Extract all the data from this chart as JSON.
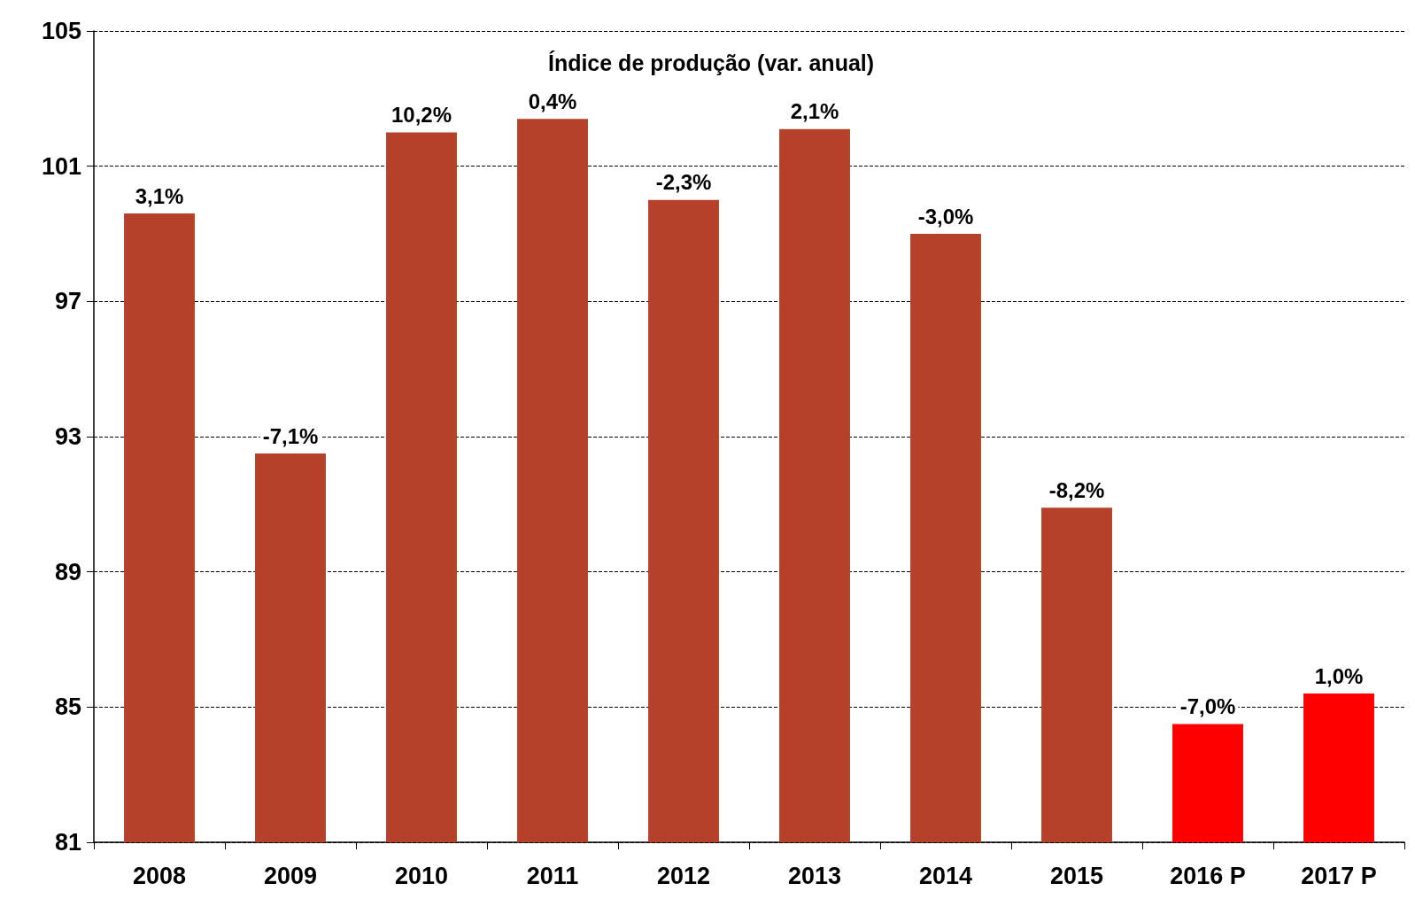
{
  "chart_data": {
    "type": "bar",
    "title": "Índice de produção (var. anual)",
    "categories": [
      "2008",
      "2009",
      "2010",
      "2011",
      "2012",
      "2013",
      "2014",
      "2015",
      "2016 P",
      "2017 P"
    ],
    "values": [
      99.6,
      92.5,
      102.0,
      102.4,
      100.0,
      102.1,
      99.0,
      90.9,
      84.5,
      85.4
    ],
    "colors": [
      "#b5412a",
      "#b5412a",
      "#b5412a",
      "#b5412a",
      "#b5412a",
      "#b5412a",
      "#b5412a",
      "#b5412a",
      "#ff0000",
      "#ff0000"
    ],
    "annotations": [
      {
        "text": "3,1%",
        "x": "2008",
        "y": 99.6
      },
      {
        "text": "-7,1%",
        "x": "2009",
        "y": 92.5
      },
      {
        "text": "10,2%",
        "x": "2010",
        "y": 102.0
      },
      {
        "text": "0,4%",
        "x": "2011",
        "y": 102.4
      },
      {
        "text": "-2,3%",
        "x": "2012",
        "y": 100.0
      },
      {
        "text": "2,1%",
        "x": "2013",
        "y": 102.1
      },
      {
        "text": "-3,0%",
        "x": "2014",
        "y": 99.0
      },
      {
        "text": "-8,2%",
        "x": "2015",
        "y": 90.9
      },
      {
        "text": "-7,0%",
        "x": "2016 P",
        "y": 84.5
      },
      {
        "text": "1,0%",
        "x": "2017 P",
        "y": 85.4
      }
    ],
    "ylim": [
      81,
      105
    ],
    "yticks": [
      81,
      85,
      89,
      93,
      97,
      101,
      105
    ],
    "grid": "y"
  }
}
